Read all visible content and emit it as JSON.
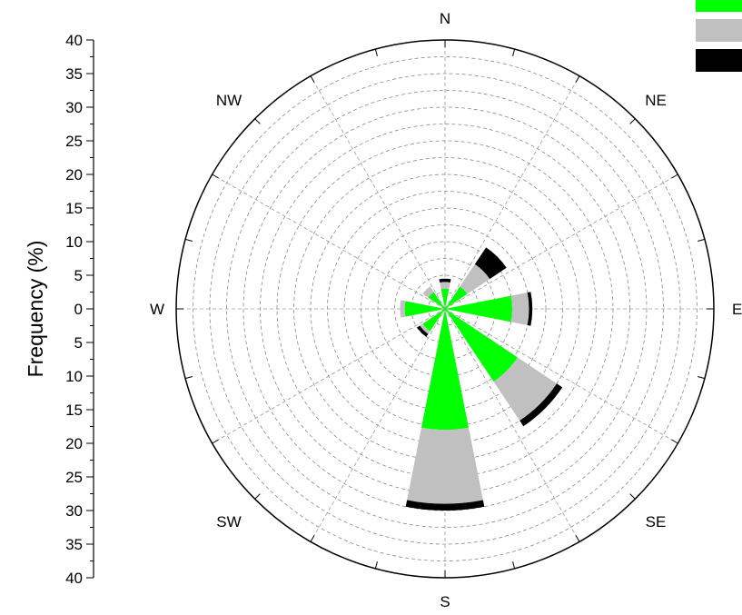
{
  "chart_data": {
    "type": "windrose",
    "ylabel": "Frequency (%)",
    "r_max": 40,
    "r_ticks": [
      0,
      5,
      10,
      15,
      20,
      25,
      30,
      35,
      40
    ],
    "tick_labels_top": [
      "40",
      "35",
      "30",
      "25",
      "20",
      "15",
      "10",
      "5",
      "0"
    ],
    "tick_labels_bottom": [
      "5",
      "10",
      "15",
      "20",
      "25",
      "30",
      "35",
      "40"
    ],
    "grid": true,
    "legend_position": "top-right",
    "directions": [
      "N",
      "NE",
      "E",
      "SE",
      "S",
      "SW",
      "W",
      "NW"
    ],
    "sectors": [
      {
        "angle": 0,
        "stack": [
          3,
          1,
          0.5
        ]
      },
      {
        "angle": 22.5,
        "stack": [
          0,
          0,
          0
        ]
      },
      {
        "angle": 45,
        "stack": [
          4,
          4,
          3
        ]
      },
      {
        "angle": 67.5,
        "stack": [
          0,
          0,
          0
        ]
      },
      {
        "angle": 90,
        "stack": [
          10,
          2.5,
          0.5
        ]
      },
      {
        "angle": 112.5,
        "stack": [
          0,
          0,
          0
        ]
      },
      {
        "angle": 135,
        "stack": [
          13,
          7,
          1
        ]
      },
      {
        "angle": 157.5,
        "stack": [
          0,
          0,
          0
        ]
      },
      {
        "angle": 180,
        "stack": [
          18,
          11,
          1
        ]
      },
      {
        "angle": 202.5,
        "stack": [
          0,
          0,
          0
        ]
      },
      {
        "angle": 225,
        "stack": [
          4,
          0.5,
          0.5
        ]
      },
      {
        "angle": 247.5,
        "stack": [
          0,
          0,
          0
        ]
      },
      {
        "angle": 270,
        "stack": [
          6,
          0.7,
          0
        ]
      },
      {
        "angle": 292.5,
        "stack": [
          0,
          0,
          0
        ]
      },
      {
        "angle": 315,
        "stack": [
          3,
          1,
          0
        ]
      },
      {
        "angle": 337.5,
        "stack": [
          0,
          0,
          0
        ]
      }
    ],
    "series": [
      {
        "color": "#00ff00"
      },
      {
        "color": "#c0c0c0"
      },
      {
        "color": "#000000"
      }
    ]
  }
}
